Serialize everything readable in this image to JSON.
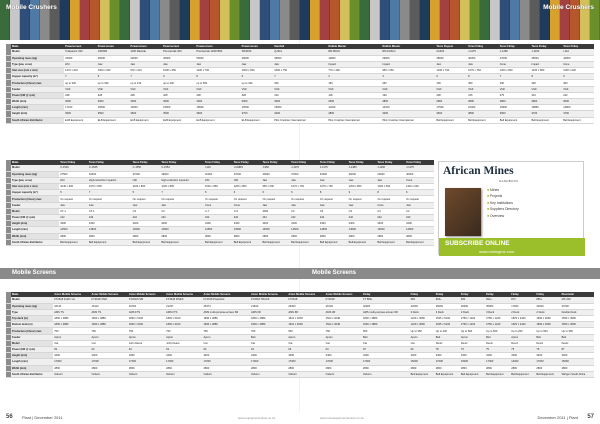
{
  "sections": {
    "left_top": "Mobile Crushers",
    "right_top": "Mobile Crushers",
    "screens_left": "Mobile Screens",
    "screens_right": "Mobile Screens"
  },
  "crushers_table_1": {
    "headers": [
      "Make",
      "Powerscreen",
      "Powerscreen",
      "Powerscreen",
      "Powerscreen",
      "Powerscreen",
      "Powerscreen",
      "Sandvik",
      "Rubble Master",
      "Rubble Master",
      "Terex Pegson",
      "Terex Finlay",
      "Terex Finlay",
      "Terex Finlay",
      "Terex Finlay"
    ],
    "rows": [
      [
        "Model",
        "Trakpactor 320",
        "1000SR",
        "1100 Maxtrak",
        "Premiertrak 400",
        "Premiertrak 1100X650",
        "XR400S",
        "QJ341",
        "RM 80GO",
        "RM 100GO",
        "XA400",
        "J-1175",
        "J-1480",
        "J-1160",
        "I-110"
      ],
      [
        "Operating mass (kg)",
        "34000",
        "45000",
        "42000",
        "46000",
        "50000",
        "39000",
        "35000",
        "14800",
        "29000",
        "48000",
        "40000",
        "47000",
        "35000",
        "42000"
      ],
      [
        "Type (jaw, cone)",
        "HSI",
        "Jaw",
        "Jaw",
        "Jaw",
        "Jaw",
        "Jaw",
        "Jaw",
        "Impact",
        "Impact",
        "Jaw",
        "Jaw",
        "Cone",
        "Impact",
        "Cone"
      ],
      [
        "Inlet size (mm x mm)",
        "1270 x 610",
        "1000 x 600",
        "970 x 610",
        "1000 x 650",
        "1100 x 700",
        "1000 x 650",
        "1000 x 750",
        "770 x 490",
        "950 x 650",
        "1040 x 700",
        "1070 x 760",
        "1200 x 800",
        "1220 x 860",
        "1100 x 620"
      ],
      [
        "Hopper capacity (m³)",
        "7",
        "5",
        "7",
        "9",
        "8",
        "9",
        "7",
        "2",
        "4",
        "9",
        "8",
        "7",
        "8",
        "6"
      ],
      [
        "Production (t/hour) max",
        "up to 320",
        "up to 300",
        "up to 310",
        "up to 330",
        "up to 500",
        "up to 440",
        "400",
        "150",
        "260",
        "400",
        "450",
        "450",
        "300",
        "400"
      ],
      [
        "Feeder",
        "VGF",
        "VGF",
        "VGF",
        "VGF",
        "VGF",
        "VGF",
        "VGF",
        "VGF",
        "VGF",
        "VGF",
        "VGF",
        "VGF",
        "VGF",
        "VGF"
      ],
      [
        "Power (kW @ rpm)",
        "328",
        "328",
        "328",
        "328",
        "328",
        "328",
        "310",
        "118",
        "190",
        "328",
        "315",
        "275",
        "310",
        "242"
      ],
      [
        "Width (mm)",
        "3000",
        "3000",
        "3000",
        "3000",
        "3000",
        "3000",
        "3000",
        "2500",
        "2800",
        "2800",
        "2800",
        "2800",
        "2800",
        "3000"
      ],
      [
        "Length (mm)",
        "17100",
        "15500",
        "14500",
        "15500",
        "16500",
        "15500",
        "15000",
        "11200",
        "14100",
        "17500",
        "16400",
        "15900",
        "16850",
        "14800"
      ],
      [
        "Height (mm)",
        "3600",
        "3500",
        "3600",
        "3500",
        "3600",
        "3700",
        "3400",
        "2800",
        "3300",
        "3600",
        "3800",
        "3600",
        "3700",
        "3700"
      ],
      [
        "South African distributor",
        "ELB Equipment",
        "ELB Equipment",
        "ELB Equipment",
        "ELB Equipment",
        "ELB Equipment",
        "ELB Equipment",
        "Pilot Crushtec International",
        "Pilot Crushtec International",
        "Pilot Crushtec International",
        "Bell Equipment",
        "Bell Equipment",
        "Bell Equipment",
        "Bell Equipment",
        "Bell Equipment"
      ]
    ]
  },
  "crushers_table_2": {
    "headers": [
      "Make",
      "Terex Finlay",
      "Terex Finlay",
      "Terex Finlay",
      "Terex Finlay",
      "Terex Finlay",
      "Terex Finlay",
      "Terex Finlay",
      "Terex Finlay",
      "Terex Finlay",
      "Terex Finlay",
      "Terex Finlay",
      "Terex Finlay"
    ],
    "rows": [
      [
        "Model",
        "C-1540",
        "C-1545",
        "C-1550",
        "C-1554",
        "I-110",
        "I-110RS",
        "J-960",
        "J-1170",
        "J-1175",
        "J-1480",
        "J-1160",
        "J-1175"
      ],
      [
        "Operating mass (kg)",
        "27500",
        "32000",
        "37000",
        "43000",
        "42000",
        "47000",
        "30000",
        "37000",
        "40000",
        "46000",
        "29000",
        "40000"
      ],
      [
        "Type (jaw, cone)",
        "HSI",
        "High-reduction impactor",
        "HSI",
        "High-reduction impactor",
        "HSI",
        "HSI",
        "Jaw",
        "Jaw",
        "Jaw",
        "Jaw",
        "Jaw",
        "Cone"
      ],
      [
        "Inlet size (mm x mm)",
        "1040 x 600",
        "1070 x 800",
        "1100 x 800",
        "1100 x 800",
        "1040 x 860",
        "1200 x 800",
        "950 x 600",
        "1070 x 760",
        "1070 x 760",
        "1200 x 800",
        "1000 x 600",
        "1100 x 620"
      ],
      [
        "Hopper capacity (m³)",
        "5",
        "7",
        "5",
        "7",
        "6",
        "6",
        "6",
        "6",
        "8",
        "9",
        "8",
        "6"
      ],
      [
        "Production (t/hour) max",
        "On request",
        "On request",
        "On request",
        "On request",
        "On request",
        "On request",
        "On request",
        "On request",
        "On request",
        "On request",
        "On request",
        "On request"
      ],
      [
        "Feeder",
        "Jaw",
        "Jaw",
        "Jaw",
        "Jaw",
        "Cone",
        "Cone",
        "Jaw",
        "Jaw",
        "Jaw",
        "Jaw",
        "Cone",
        "Jaw"
      ],
      [
        "Model",
        "CT-1",
        "CT-1",
        "C3",
        "C3",
        "C-7",
        "C-9",
        "3000",
        "C3",
        "C3",
        "C3",
        "C3",
        "C3"
      ],
      [
        "Power (kW @ rpm)",
        "142",
        "242",
        "242",
        "242",
        "242",
        "242",
        "242",
        "242",
        "242",
        "242",
        "242",
        "242"
      ],
      [
        "Height (mm)",
        "3300",
        "3400",
        "3400",
        "3400",
        "3400",
        "3400",
        "3400",
        "3400",
        "3400",
        "3400",
        "3400",
        "3400"
      ],
      [
        "Length (mm)",
        "12500",
        "14500",
        "14500",
        "14500",
        "14500",
        "14500",
        "14500",
        "14500",
        "14500",
        "14500",
        "14500",
        "14500"
      ],
      [
        "Width (mm)",
        "2800",
        "2800",
        "2800",
        "2800",
        "2800",
        "2800",
        "2800",
        "2800",
        "2800",
        "2800",
        "2800",
        "2800"
      ],
      [
        "South African distributor",
        "Bell Equipment",
        "Bell Equipment",
        "Bell Equipment",
        "Bell Equipment",
        "Bell Equipment",
        "Bell Equipment",
        "Bell Equipment",
        "Bell Equipment",
        "Bell Equipment",
        "Bell Equipment",
        "Bell Equipment",
        "Bell Equipment"
      ]
    ]
  },
  "screens_table": {
    "headers": [
      "Make",
      "Astec Mobile Screens",
      "Astec Mobile Screens",
      "Astec Mobile Screens",
      "Astec Mobile Screens",
      "Astec Mobile Screens",
      "Astec Mobile Screens",
      "Astec Mobile Screens",
      "Astec Mobile Screens",
      "Finlay",
      "Finlay",
      "Finlay",
      "Finlay",
      "Finlay",
      "Finlay",
      "Finlay",
      "Kleemann"
    ],
    "rows": [
      [
        "Model",
        "FT2618 Fold'n Go",
        "FT2618 VSM",
        "FT2618 ISM",
        "FT2618 FINES",
        "FT2618 Powerlink",
        "FT2618 TRACK",
        "FT2618",
        "FT2618",
        "FT 883+",
        "683",
        "693+",
        "684",
        "694+",
        "873",
        "883+",
        "MS 15Z"
      ],
      [
        "Operating mass (kg)",
        "16110",
        "16110",
        "20792",
        "21337",
        "25373",
        "21840",
        "23000",
        "21000",
        "32000",
        "22000",
        "26000",
        "30000",
        "35000",
        "17000",
        "32000",
        "37000"
      ],
      [
        "Type",
        "AMS TS",
        "AMS TS",
        "AMS FTS",
        "AMS FTS",
        "AMS multi-purpose-screen 6R",
        "AMS 6R",
        "AMS 6R",
        "AMS 3R",
        "AMS multi-purpose-screen 6R",
        "3 Deck",
        "3 Deck",
        "2 Deck",
        "3 Deck",
        "2 Deck",
        "2 Deck",
        "Double Deck"
      ],
      [
        "Top deck (m)",
        "1830 x 4880",
        "1830 x 4880",
        "1830 x 6100",
        "1830 x 6100",
        "1830 x 4880",
        "1830 x 4880",
        "1524 x 3048",
        "1524 x 3048",
        "1830 x 4880",
        "1220 x 3660",
        "1525 x 6100",
        "2750 x 1220",
        "2750 x 1220",
        "1525 x 2440",
        "1830 x 3660",
        "1550 x 4500"
      ],
      [
        "Bottom deck (m)",
        "1830 x 4880",
        "1830 x 4880",
        "1830 x 6100",
        "1830 x 6100",
        "1830 x 4880",
        "1830 x 4880",
        "1524 x 3048",
        "1524 x 3048",
        "1830 x 4880",
        "1220 x 3660",
        "1525 x 6100",
        "2750 x 1220",
        "2750 x 1220",
        "1525 x 2440",
        "1830 x 3660",
        "1550 x 4500"
      ],
      [
        "Production (t/hour) max",
        "750",
        "750",
        "750",
        "750",
        "750",
        "750",
        "500",
        "750",
        "600",
        "Up to 350",
        "Up to 400",
        "Up to 500",
        "Up to 500",
        "Up to 250",
        "Up to 500",
        "Up to 350"
      ],
      [
        "Feeder",
        "Apron",
        "Apron",
        "Apron",
        "Apron",
        "Apron",
        "Belt",
        "Apron",
        "Apron",
        "Belt",
        "Apron",
        "Belt",
        "Apron",
        "Belt",
        "Apron",
        "Belt",
        "Belt"
      ],
      [
        "Model",
        "Cat",
        "Cat",
        "John Deere",
        "John Deere",
        "Cat",
        "Cat",
        "Cat",
        "Cat",
        "Cat",
        "Cat",
        "Deutz",
        "Deutz",
        "Deutz",
        "Deutz",
        "Deutz",
        "Deutz"
      ],
      [
        "Power (kW @ rpm)",
        "63",
        "63",
        "63",
        "63",
        "63",
        "63",
        "63",
        "63",
        "97",
        "60",
        "78",
        "75",
        "75",
        "75",
        "75",
        "87"
      ],
      [
        "Height (mm)",
        "3400",
        "3400",
        "3400",
        "3400",
        "3400",
        "3400",
        "3400",
        "3400",
        "3400",
        "3400",
        "3400",
        "3400",
        "3400",
        "3400",
        "3400",
        "3400"
      ],
      [
        "Length (mm)",
        "17000",
        "17000",
        "17000",
        "17000",
        "17000",
        "17000",
        "17000",
        "17000",
        "17000",
        "15000",
        "17000",
        "15000",
        "17000",
        "14000",
        "17000",
        "15000"
      ],
      [
        "Width (mm)",
        "2800",
        "2800",
        "2800",
        "2800",
        "2800",
        "2800",
        "2800",
        "2800",
        "2800",
        "2800",
        "2800",
        "2800",
        "2800",
        "2800",
        "2800",
        "2800"
      ],
      [
        "South African distributor",
        "Osborn",
        "Osborn",
        "Osborn",
        "Osborn",
        "Osborn",
        "Osborn",
        "Osborn",
        "Osborn",
        "Osborn",
        "Bell Equipment",
        "Bell Equipment",
        "Bell Equipment",
        "Bell Equipment",
        "Bell Equipment",
        "Bell Equipment",
        "Wirtgen South Africa"
      ]
    ]
  },
  "advert": {
    "brand": "African Mines",
    "sub": "HANDBOOK",
    "items": [
      "Mines",
      "Projects",
      "Key Institutions",
      "Suppliers Directory",
      "Overview"
    ],
    "subscribe": "SUBSCRIBE ONLINE",
    "url": "www.miningmx.com"
  },
  "footer": {
    "page_left": "56",
    "page_right": "57",
    "mag_left": "Plant | December 2011",
    "mag_right": "December 2011 | Plant",
    "web_left": "www.equipmentonline.co.za",
    "web_right": "www.mineequipmentonline.co.za"
  },
  "colors": {
    "header": "#3a3a3a",
    "band": "#8a8a8a",
    "accent_green": "#9bbf2b"
  }
}
